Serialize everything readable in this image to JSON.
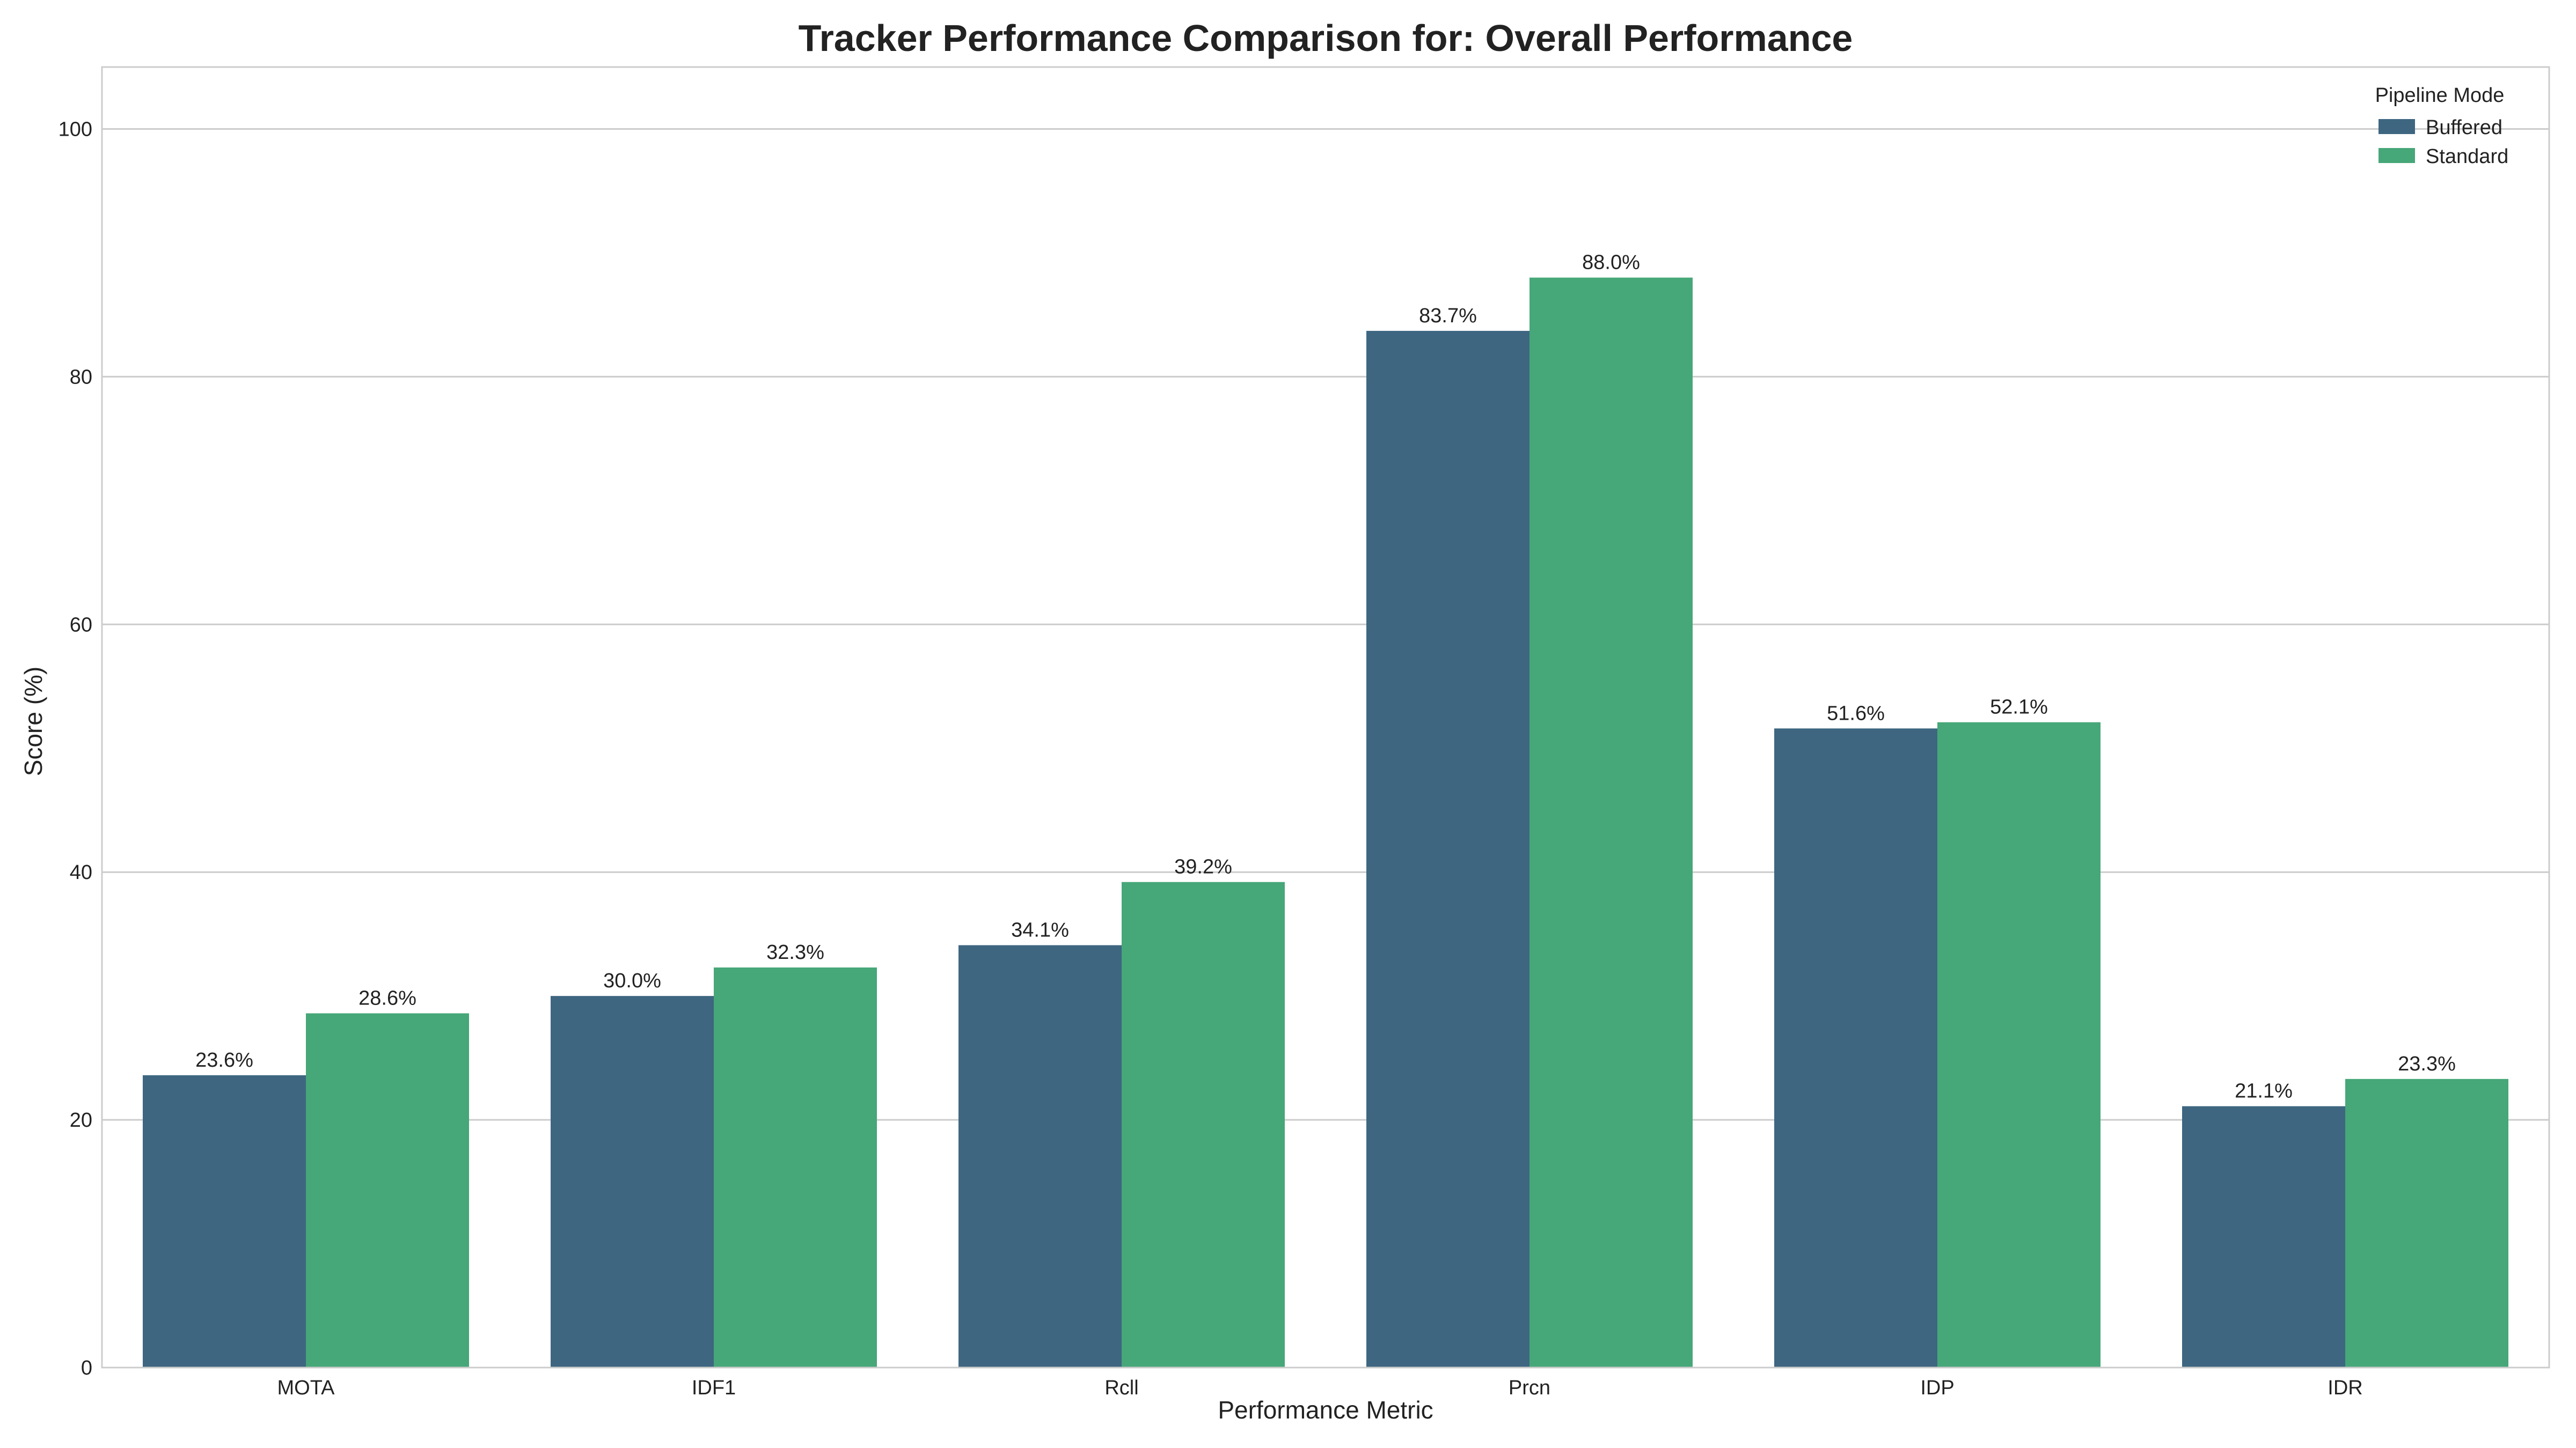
{
  "chart_data": {
    "type": "bar",
    "title": "Tracker Performance Comparison for: Overall Performance",
    "xlabel": "Performance Metric",
    "ylabel": "Score (%)",
    "categories": [
      "MOTA",
      "IDF1",
      "Rcll",
      "Prcn",
      "IDP",
      "IDR"
    ],
    "series": [
      {
        "name": "Buffered",
        "color": "#3e6681",
        "values": [
          23.6,
          30.0,
          34.1,
          83.7,
          51.6,
          21.1
        ]
      },
      {
        "name": "Standard",
        "color": "#46a778",
        "values": [
          28.6,
          32.3,
          39.2,
          88.0,
          52.1,
          23.3
        ]
      }
    ],
    "ylim": [
      0,
      105
    ],
    "yticks": [
      0,
      20,
      40,
      60,
      80,
      100
    ],
    "value_suffix": "%",
    "grid": "horizontal",
    "legend": {
      "title": "Pipeline Mode",
      "placement": "top-right"
    }
  }
}
